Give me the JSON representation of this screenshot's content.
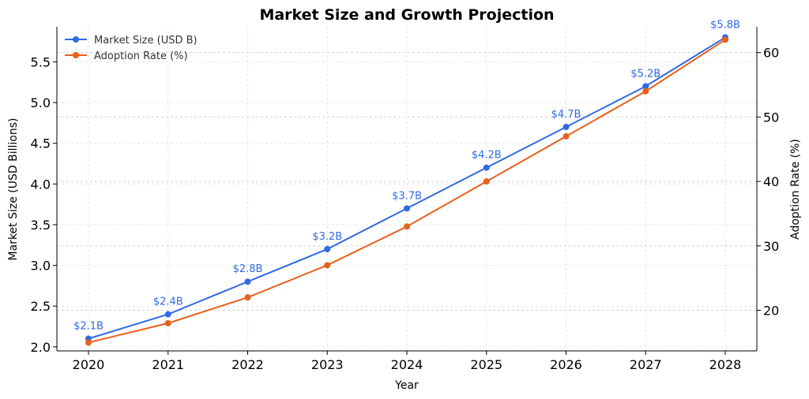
{
  "chart_data": {
    "type": "line",
    "title": "Market Size and Growth Projection",
    "xlabel": "Year",
    "ylabel_left": "Market Size (USD Billions)",
    "ylabel_right": "Adoption Rate (%)",
    "x": [
      "2020",
      "2021",
      "2022",
      "2023",
      "2024",
      "2025",
      "2026",
      "2027",
      "2028"
    ],
    "ylim_left": [
      1.95,
      5.93
    ],
    "ylim_right": [
      13.7,
      64.0
    ],
    "yticks_left": [
      2.0,
      2.5,
      3.0,
      3.5,
      4.0,
      4.5,
      5.0,
      5.5
    ],
    "yticks_left_labels": [
      "2.0",
      "2.5",
      "3.0",
      "3.5",
      "4.0",
      "4.5",
      "5.0",
      "5.5"
    ],
    "yticks_right": [
      20,
      30,
      40,
      50,
      60
    ],
    "yticks_right_labels": [
      "20",
      "30",
      "40",
      "50",
      "60"
    ],
    "grid": true,
    "legend_position": "top-left",
    "series": [
      {
        "name": "Market Size (USD B)",
        "axis": "left",
        "color": "#2f6ae6",
        "values": [
          2.1,
          2.4,
          2.8,
          3.2,
          3.7,
          4.2,
          4.7,
          5.2,
          5.8
        ],
        "data_labels": [
          "$2.1B",
          "$2.4B",
          "$2.8B",
          "$3.2B",
          "$3.7B",
          "$4.2B",
          "$4.7B",
          "$5.2B",
          "$5.8B"
        ]
      },
      {
        "name": "Adoption Rate (%)",
        "axis": "right",
        "color": "#e8601c",
        "values": [
          15,
          18,
          22,
          27,
          33,
          40,
          47,
          54,
          62
        ]
      }
    ]
  }
}
